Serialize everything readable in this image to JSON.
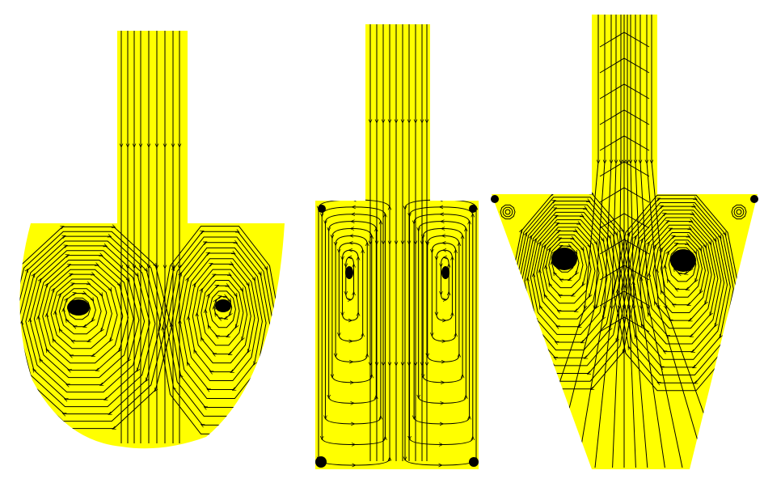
{
  "figure": {
    "panels": [
      {
        "id": "semicircle",
        "shape": "cylindrical-cavity"
      },
      {
        "id": "rectangle",
        "shape": "rectangular-cavity"
      },
      {
        "id": "trapezoid",
        "shape": "tapered-cavity"
      }
    ]
  },
  "colors": {
    "fluid": "#ffff00",
    "streamline": "#000000",
    "background": "#ffffff"
  }
}
